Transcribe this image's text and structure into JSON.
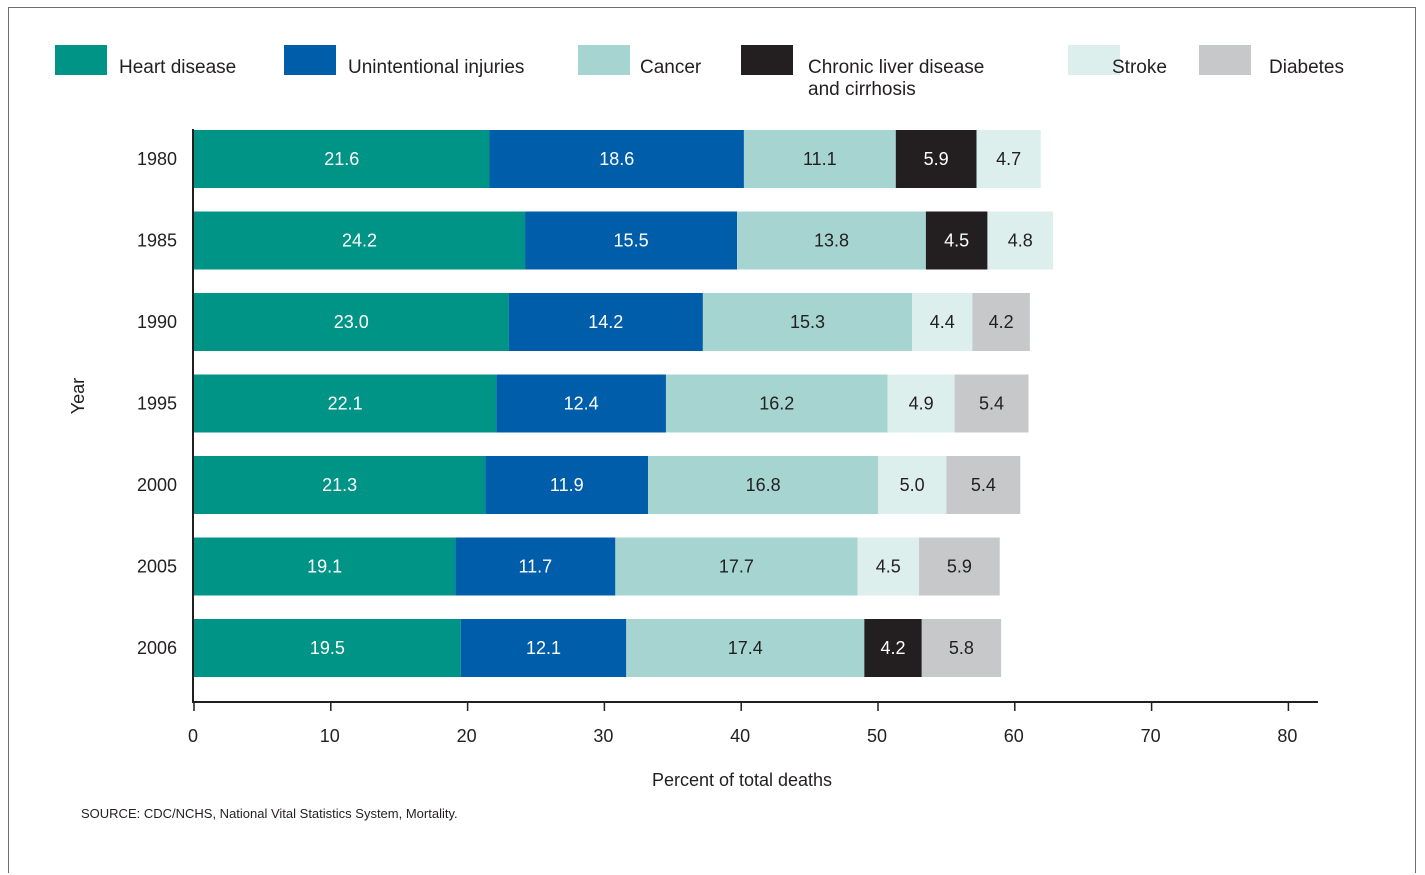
{
  "chart_data": {
    "type": "bar",
    "orientation": "horizontal",
    "stacked": true,
    "categories": [
      "1980",
      "1985",
      "1990",
      "1995",
      "2000",
      "2005",
      "2006"
    ],
    "series": [
      {
        "name": "Heart disease",
        "color": "#009487",
        "label_color": "#ffffff",
        "values": [
          21.6,
          24.2,
          23.0,
          22.1,
          21.3,
          19.1,
          19.5
        ]
      },
      {
        "name": "Unintentional injuries",
        "color": "#005daa",
        "label_color": "#ffffff",
        "values": [
          18.6,
          15.5,
          14.2,
          12.4,
          11.9,
          11.7,
          12.1
        ]
      },
      {
        "name": "Cancer",
        "color": "#a6d5d1",
        "label_color": "#231f20",
        "values": [
          11.1,
          13.8,
          15.3,
          16.2,
          16.8,
          17.7,
          17.4
        ]
      },
      {
        "name": "Chronic liver disease and cirrhosis",
        "legend_lines": [
          "Chronic liver disease",
          "and cirrhosis"
        ],
        "color": "#231f20",
        "label_color": "#ffffff",
        "values": [
          5.9,
          4.5,
          null,
          null,
          null,
          null,
          4.2
        ]
      },
      {
        "name": "Stroke",
        "color": "#ddefed",
        "label_color": "#231f20",
        "values": [
          4.7,
          4.8,
          4.4,
          4.9,
          5.0,
          4.5,
          null
        ]
      },
      {
        "name": "Diabetes",
        "color": "#c7c8ca",
        "label_color": "#231f20",
        "values": [
          null,
          null,
          4.2,
          5.4,
          5.4,
          5.9,
          5.8
        ]
      }
    ],
    "xlabel": "Percent of total deaths",
    "ylabel": "Year",
    "xlim": [
      0,
      80
    ],
    "xticks": [
      0,
      10,
      20,
      30,
      40,
      50,
      60,
      70,
      80
    ],
    "grid": false,
    "legend_position": "top"
  },
  "source_note": "SOURCE: CDC/NCHS, National Vital Statistics System, Mortality."
}
